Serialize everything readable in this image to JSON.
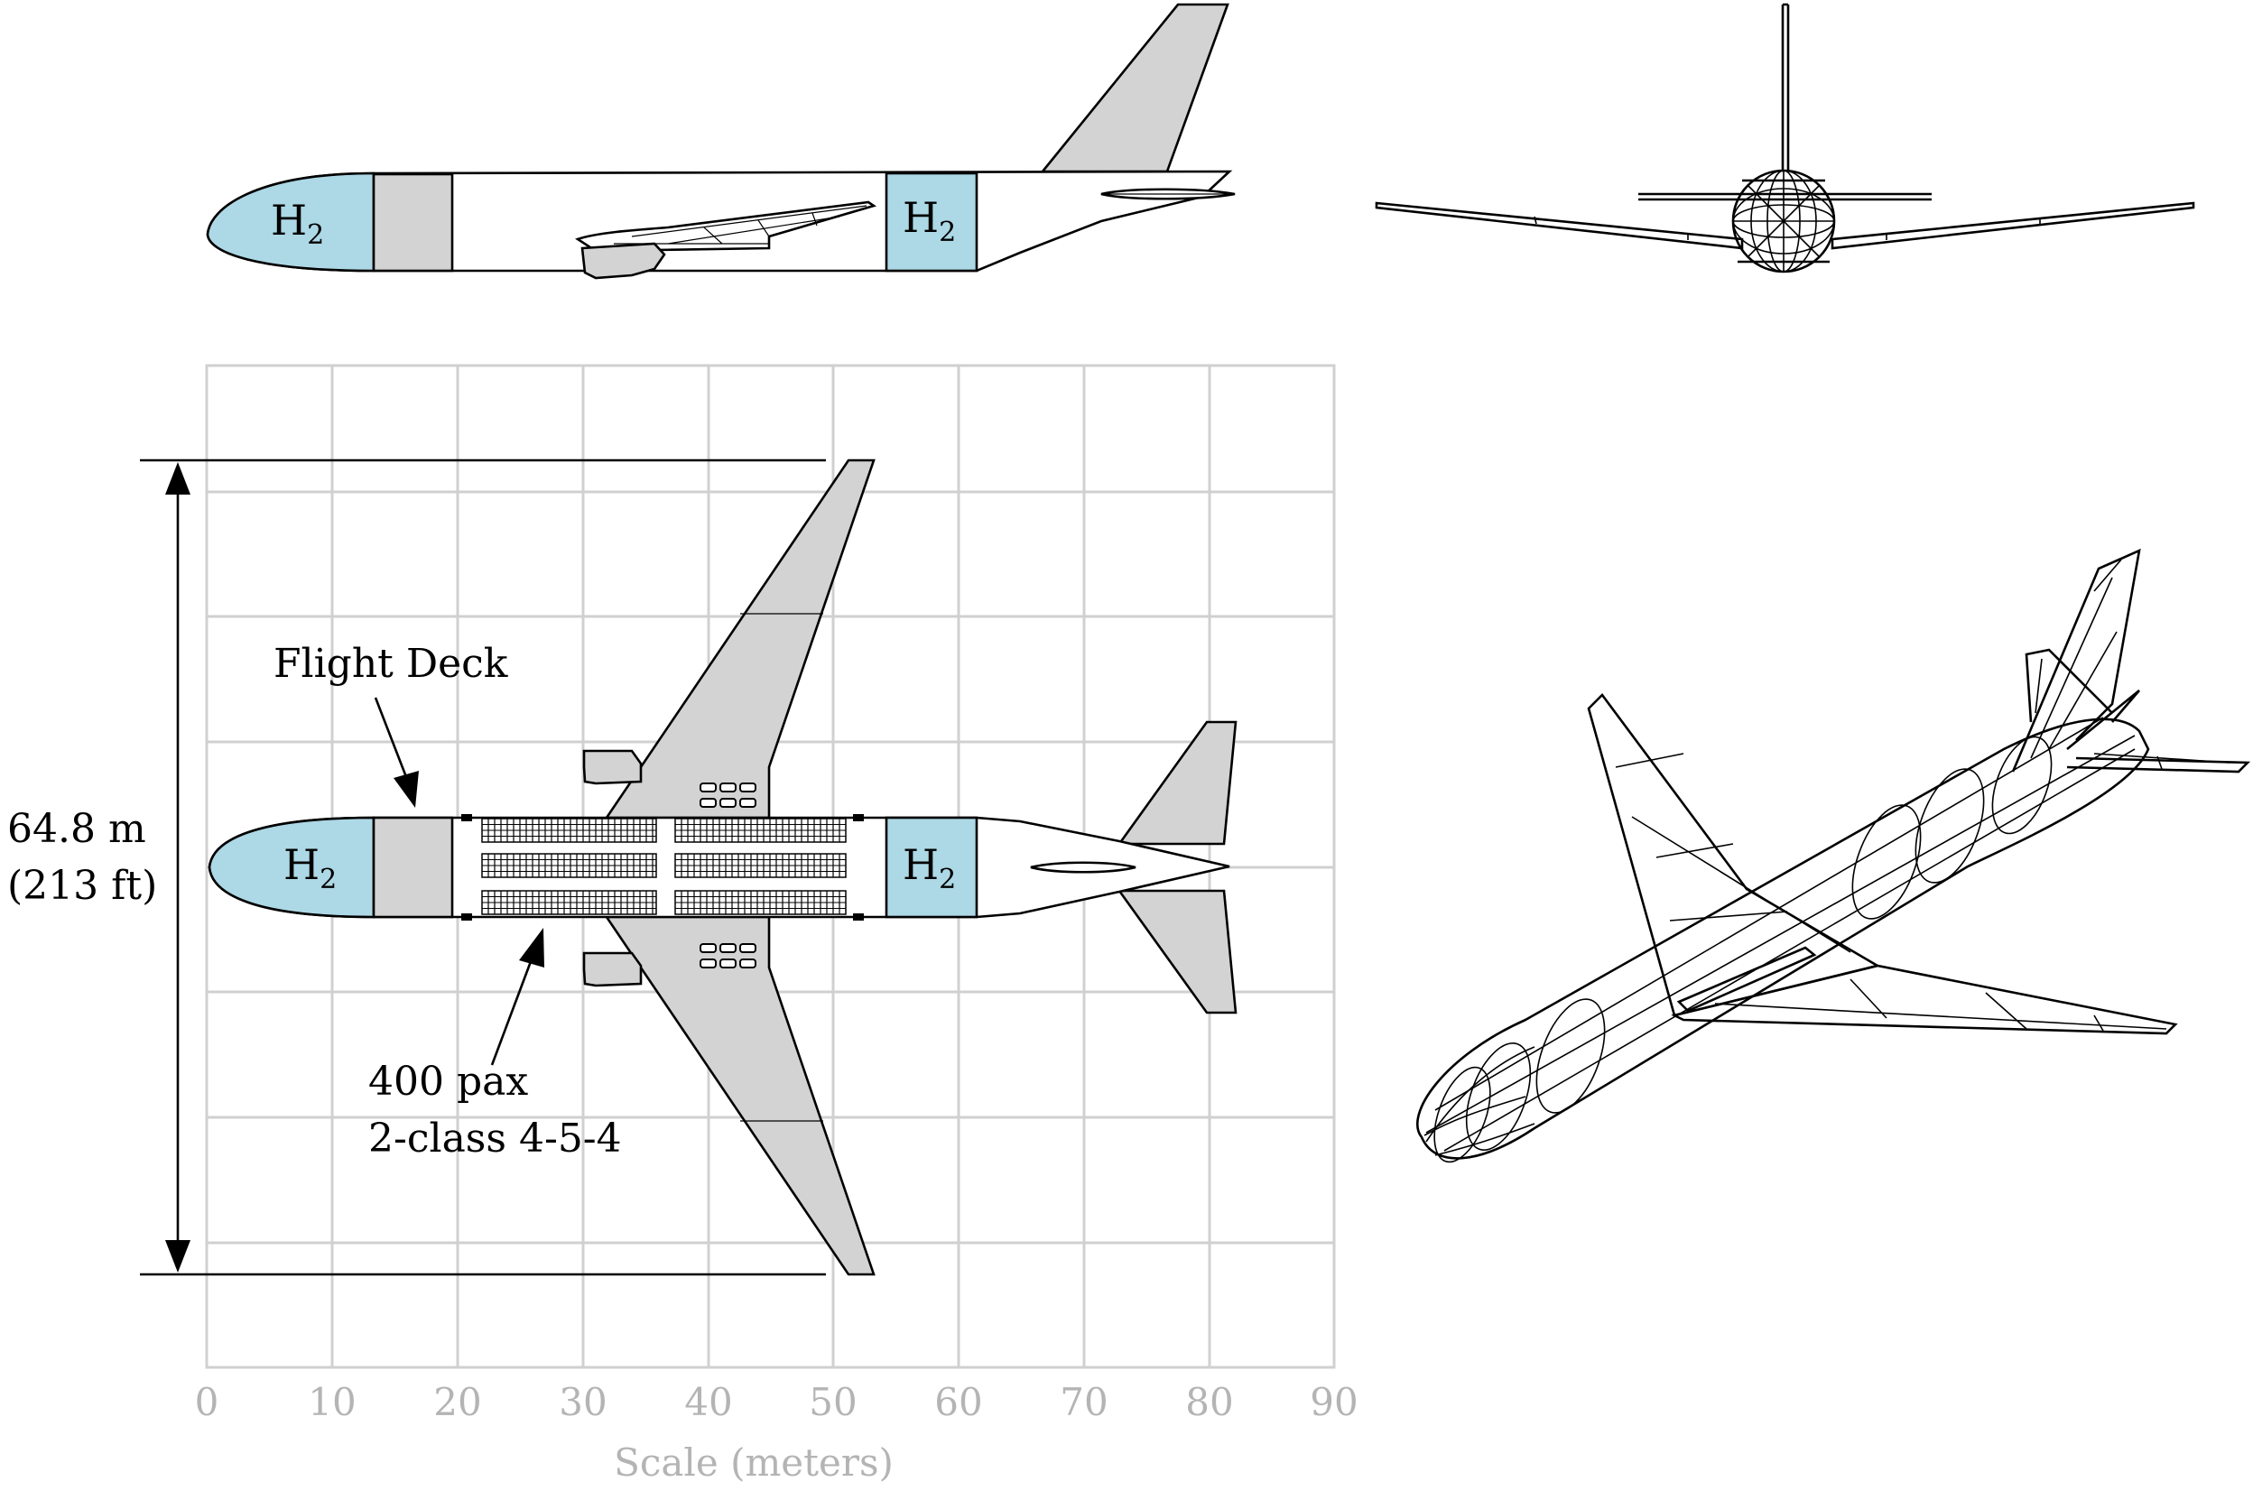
{
  "figure": {
    "span_label_value": "64.8 m",
    "span_label_imperial": "(213 ft)",
    "flight_deck_label": "Flight Deck",
    "pax_line1": "400 pax",
    "pax_line2": "2-class 4-5-4",
    "tank_label_main": "H",
    "tank_label_sub": "2",
    "axis_label": "Scale (meters)",
    "ticks": [
      "0",
      "10",
      "20",
      "30",
      "40",
      "50",
      "60",
      "70",
      "80",
      "90"
    ]
  },
  "colors": {
    "hydrogen_tank": "#add8e6",
    "structure_gray": "#d3d3d3",
    "grid": "#d0d0d0",
    "tick_text": "#b4b4b4"
  }
}
